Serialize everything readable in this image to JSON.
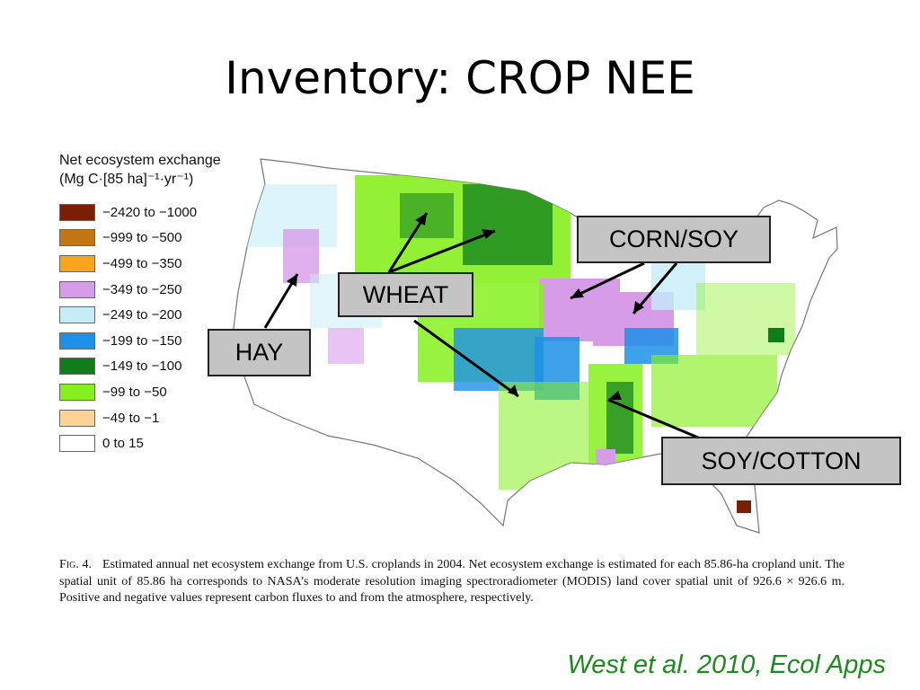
{
  "slide": {
    "title": "Inventory: CROP NEE"
  },
  "legend": {
    "title_line1": "Net ecosystem exchange",
    "title_line2": "(Mg C·[85 ha]⁻¹·yr⁻¹)",
    "items": [
      {
        "label": "−2420 to −1000",
        "color": "#7a1f04"
      },
      {
        "label": "−999 to −500",
        "color": "#c27614"
      },
      {
        "label": "−499 to −350",
        "color": "#f7a51c"
      },
      {
        "label": "−349 to −250",
        "color": "#d79ce8"
      },
      {
        "label": "−249 to −200",
        "color": "#c6ecf8"
      },
      {
        "label": "−199 to −150",
        "color": "#1e90e8"
      },
      {
        "label": "−149 to −100",
        "color": "#0f7d1c"
      },
      {
        "label": "−99 to −50",
        "color": "#86f01e"
      },
      {
        "label": "−49 to −1",
        "color": "#fcd394"
      },
      {
        "label": "0 to 15",
        "color": "#ffffff"
      }
    ]
  },
  "callouts": {
    "corn_soy": "CORN/SOY",
    "wheat": "WHEAT",
    "hay": "HAY",
    "soy_cotton": "SOY/COTTON"
  },
  "caption": {
    "fig_label": "Fig. 4.",
    "text": "Estimated annual net ecosystem exchange from U.S. croplands in 2004. Net ecosystem exchange is estimated for each 85.86-ha cropland unit. The spatial unit of 85.86 ha corresponds to NASA’s moderate resolution imaging spectroradiometer (MODIS) land cover spatial unit of 926.6 × 926.6 m. Positive and negative values represent carbon fluxes to and from the atmosphere, respectively."
  },
  "citation": "West et al. 2010, Ecol Apps"
}
